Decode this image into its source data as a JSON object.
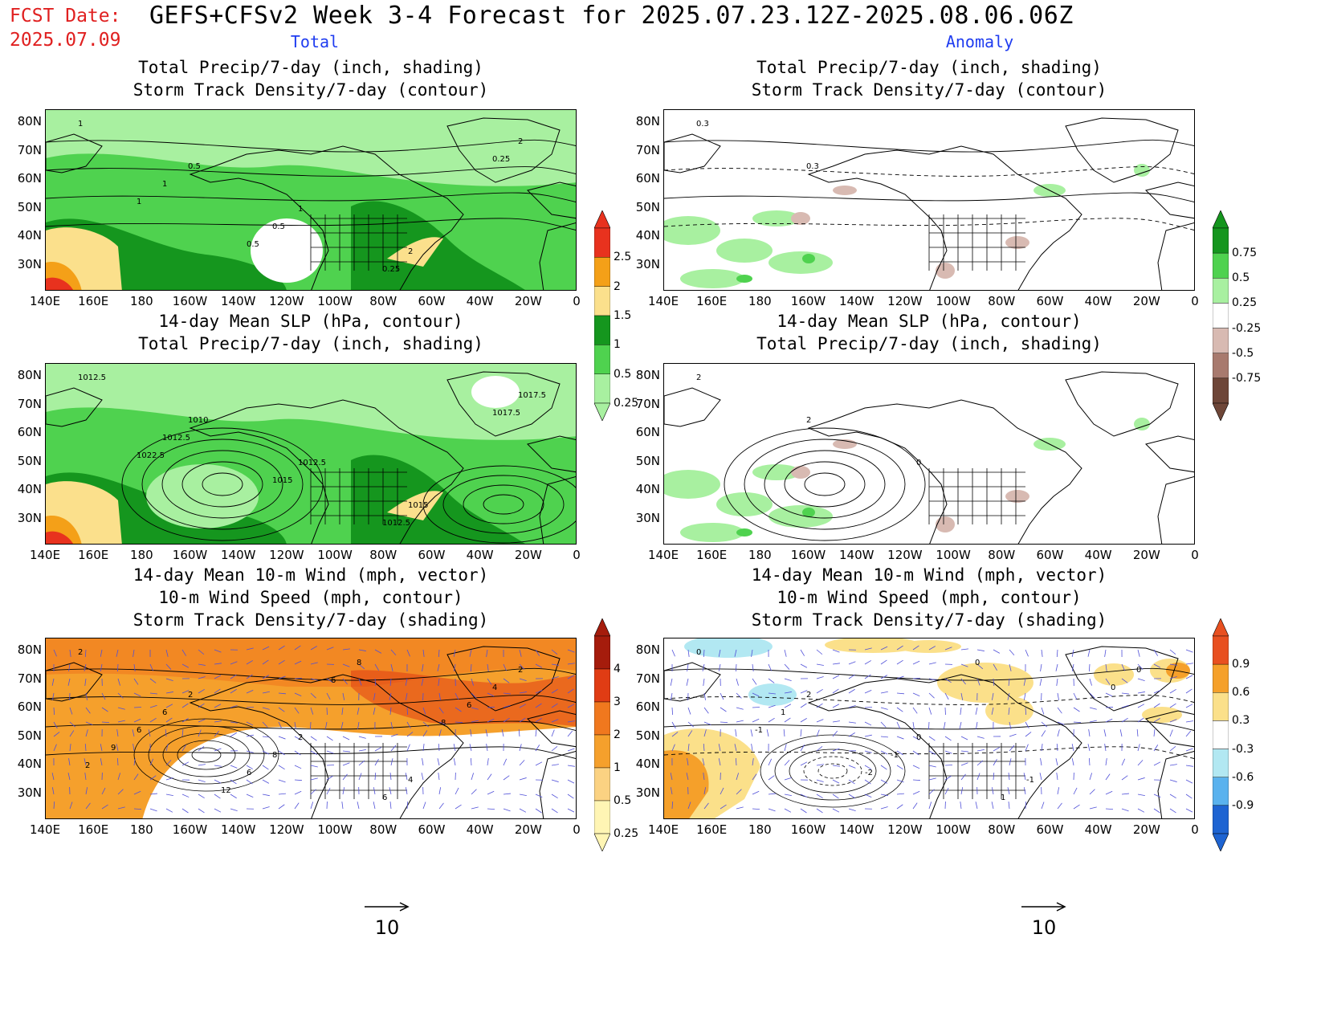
{
  "header": {
    "fcst_date_label": "FCST Date:",
    "fcst_date_value": "2025.07.09",
    "title": "GEFS+CFSv2 Week 3-4 Forecast for 2025.07.23.12Z-2025.08.06.06Z",
    "col_left": "Total",
    "col_right": "Anomaly"
  },
  "panels": {
    "p1": {
      "line1": "Total Precip/7-day (inch, shading)",
      "line2": "Storm Track Density/7-day (contour)"
    },
    "p2": {
      "line1": "Total Precip/7-day (inch, shading)",
      "line2": "Storm Track Density/7-day (contour)"
    },
    "p3": {
      "line1": "14-day Mean SLP (hPa, contour)",
      "line2": "Total Precip/7-day (inch, shading)"
    },
    "p4": {
      "line1": "14-day Mean SLP (hPa, contour)",
      "line2": "Total Precip/7-day (inch, shading)"
    },
    "p5": {
      "line1": "14-day Mean 10-m Wind (mph, vector)",
      "line2": "10-m Wind Speed (mph, contour)",
      "line3": "Storm Track Density/7-day (shading)"
    },
    "p6": {
      "line1": "14-day Mean 10-m Wind (mph, vector)",
      "line2": "10-m Wind Speed (mph, contour)",
      "line3": "Storm Track Density/7-day (shading)"
    }
  },
  "axes": {
    "lat": [
      "80N",
      "70N",
      "60N",
      "50N",
      "40N",
      "30N"
    ],
    "lon": [
      "140E",
      "160E",
      "180",
      "160W",
      "140W",
      "120W",
      "100W",
      "80W",
      "60W",
      "40W",
      "20W",
      "0"
    ]
  },
  "contour_labels": {
    "p1": [
      "1",
      "0.5",
      "1",
      "2",
      "2",
      "1",
      "0.5",
      "0.25",
      "0.25",
      "1",
      "0.5"
    ],
    "p2": [
      "0.3",
      "0.3"
    ],
    "p3": [
      "1012.5",
      "1010",
      "1012.5",
      "1015",
      "1017.5",
      "1012.5",
      "1015",
      "1012.5",
      "1017.5",
      "1022.5"
    ],
    "p4": [
      "2",
      "2",
      "0"
    ],
    "p5": [
      "2",
      "2",
      "2",
      "4",
      "2",
      "6",
      "8",
      "6",
      "4",
      "6",
      "6",
      "8",
      "6",
      "9",
      "12",
      "6",
      "8",
      "2"
    ],
    "p6": [
      "0",
      "2",
      "0",
      "-1",
      "0",
      "1",
      "-1",
      "1",
      "0",
      "-1",
      "-2",
      "0"
    ]
  },
  "colorbars": {
    "precip_total": {
      "labels": [
        "2.5",
        "2",
        "1.5",
        "1",
        "0.5",
        "0.25"
      ],
      "colors": [
        "#e8321e",
        "#f4a018",
        "#fbe08c",
        "#15961e",
        "#4fd24f",
        "#a8f0a0"
      ]
    },
    "precip_anom": {
      "labels": [
        "0.75",
        "0.5",
        "0.25",
        "-0.25",
        "-0.5",
        "-0.75"
      ],
      "colors": [
        "#15961e",
        "#4fd24f",
        "#a8f0a0",
        "#ffffff",
        "#d8bab2",
        "#a87a6e",
        "#6e4638"
      ]
    },
    "storm_total": {
      "labels": [
        "4",
        "3",
        "2",
        "1",
        "0.5",
        "0.25"
      ],
      "colors": [
        "#a51c0c",
        "#e03c14",
        "#f0781e",
        "#f5a02c",
        "#fbd282",
        "#fff5b4"
      ]
    },
    "storm_anom": {
      "labels": [
        "0.9",
        "0.6",
        "0.3",
        "-0.3",
        "-0.6",
        "-0.9"
      ],
      "colors": [
        "#e85020",
        "#f5a02a",
        "#fbe08a",
        "#ffffff",
        "#b2e8f2",
        "#5ab2ee",
        "#1e64d2"
      ]
    }
  },
  "vector_ref": {
    "left": "10",
    "right": "10"
  },
  "colors": {
    "title_red": "#e02020",
    "column_blue": "#1f3cf0",
    "vector": "#5050d8"
  }
}
